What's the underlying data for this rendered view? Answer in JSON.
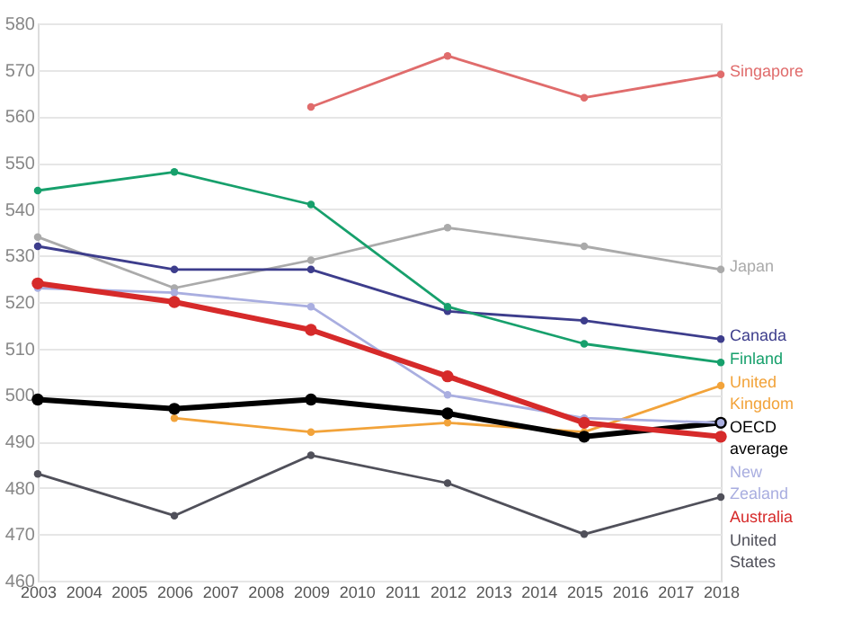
{
  "chart_data": {
    "type": "line",
    "x": [
      2003,
      2006,
      2009,
      2012,
      2015,
      2018
    ],
    "xlim": [
      2003,
      2018
    ],
    "xticks": [
      2003,
      2004,
      2005,
      2006,
      2007,
      2008,
      2009,
      2010,
      2011,
      2012,
      2013,
      2014,
      2015,
      2016,
      2017,
      2018
    ],
    "ylim": [
      460,
      580
    ],
    "yticks": [
      460,
      470,
      480,
      490,
      500,
      510,
      520,
      530,
      540,
      550,
      560,
      570,
      580
    ],
    "grid": "y",
    "legend": false,
    "marker": "circle",
    "line_style": "solid",
    "series": [
      {
        "name": "Singapore",
        "color": "#e06c6c",
        "values": [
          null,
          null,
          562,
          573,
          564,
          569
        ]
      },
      {
        "name": "Japan",
        "color": "#aaaaaa",
        "values": [
          534,
          523,
          529,
          536,
          532,
          527
        ]
      },
      {
        "name": "Canada",
        "color": "#3d3d8c",
        "values": [
          532,
          527,
          527,
          518,
          516,
          512
        ]
      },
      {
        "name": "Finland",
        "color": "#17a06c",
        "values": [
          544,
          548,
          541,
          519,
          511,
          507
        ]
      },
      {
        "name": "United Kingdom",
        "color": "#f2a33a",
        "values": [
          null,
          495,
          492,
          494,
          492,
          502
        ]
      },
      {
        "name": "OECD average",
        "color": "#000000",
        "values": [
          499,
          497,
          499,
          496,
          491,
          494
        ]
      },
      {
        "name": "New Zealand",
        "color": "#a9aee0",
        "values": [
          523,
          522,
          519,
          500,
          495,
          494
        ]
      },
      {
        "name": "Australia",
        "color": "#d62a2a",
        "values": [
          524,
          520,
          514,
          504,
          494,
          491
        ]
      },
      {
        "name": "United States",
        "color": "#50505a",
        "values": [
          483,
          474,
          487,
          481,
          470,
          478
        ]
      }
    ]
  }
}
